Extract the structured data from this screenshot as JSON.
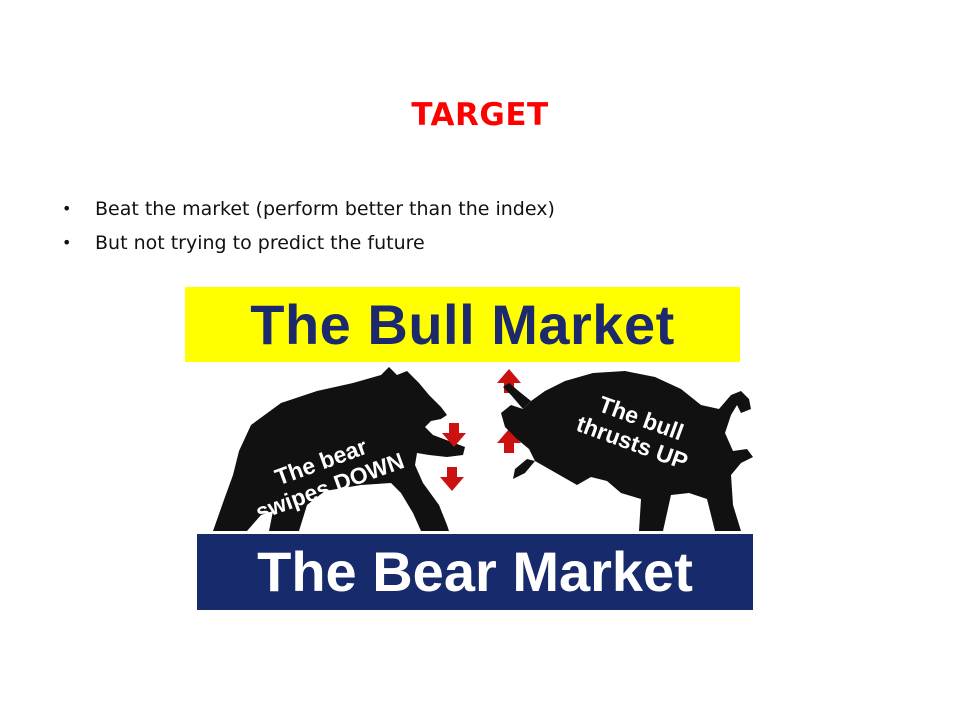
{
  "slide": {
    "title": "TARGET",
    "bullets": [
      "Beat the market (perform better than the index)",
      "But not trying to predict the future"
    ]
  },
  "image": {
    "bull_banner": "The Bull Market",
    "bear_caption_line1": "The bear",
    "bear_caption_line2": "swipes DOWN",
    "bull_caption_line1": "The bull",
    "bull_caption_line2": "thrusts UP",
    "bear_banner": "The Bear Market"
  },
  "colors": {
    "title": "#ff0000",
    "bull_banner_bg": "#ffff00",
    "bull_banner_text": "#1c2a6d",
    "bear_banner_bg": "#172a6b",
    "bear_banner_text": "#ffffff",
    "arrows": "#cc1111",
    "animals": "#111111"
  },
  "icons": {
    "bear": "bear-silhouette-icon",
    "bull": "bull-silhouette-icon",
    "down_arrows": "arrow-down-icon",
    "up_arrows": "arrow-up-icon"
  }
}
